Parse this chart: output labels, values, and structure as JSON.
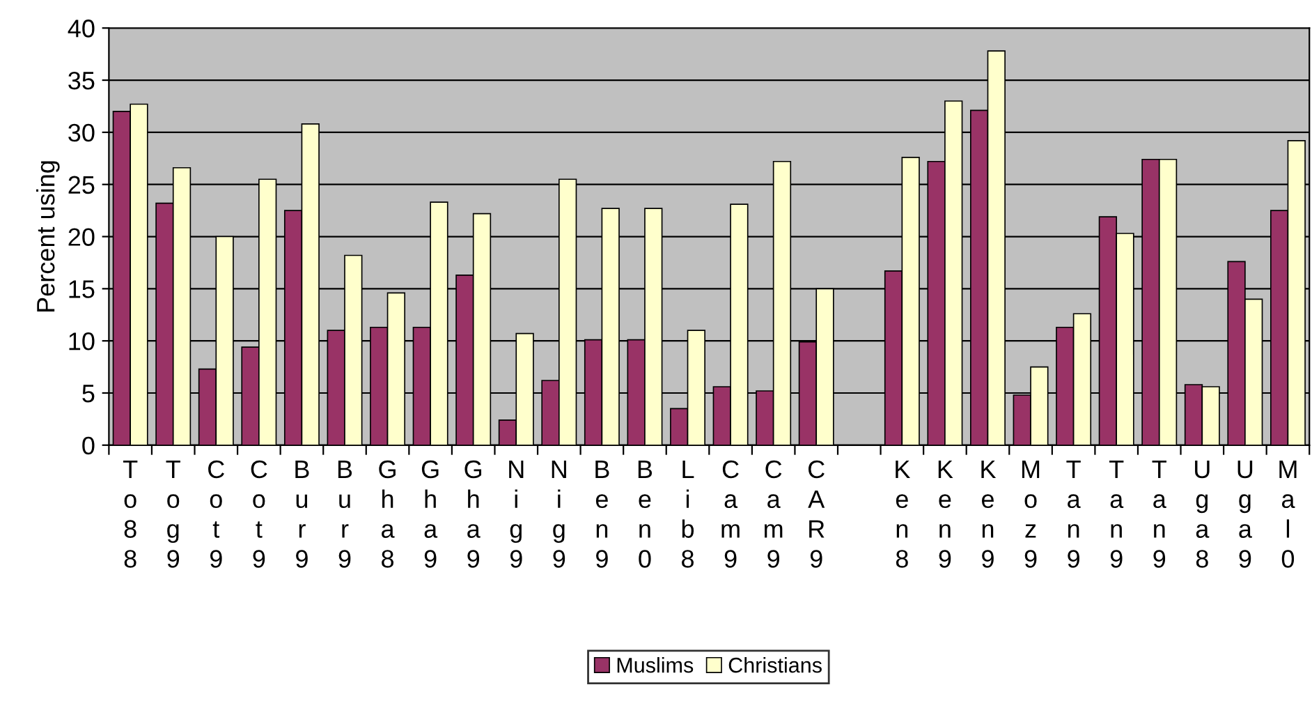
{
  "chart_data": {
    "type": "bar",
    "ylabel": "Percent using",
    "categories": [
      "To88",
      "Tog9",
      "Cot9",
      "Cot9",
      "Bur9",
      "Bur9",
      "Gha8",
      "Gha9",
      "Gha9",
      "Nig9",
      "Nig9",
      "Ben9",
      "Ben0",
      "Lib8",
      "Cam9",
      "Cam9",
      "CAR9",
      null,
      "Ken8",
      "Ken9",
      "Ken9",
      "Moz9",
      "Tan9",
      "Tan9",
      "Tan9",
      "Uga8",
      "Uga9",
      "Mal0"
    ],
    "series": [
      {
        "name": "Muslims",
        "color": "#993366",
        "values": [
          32,
          23.2,
          7.3,
          9.4,
          22.5,
          11,
          11.3,
          11.3,
          16.3,
          2.4,
          6.2,
          10.1,
          10.1,
          3.5,
          5.6,
          5.2,
          9.9,
          null,
          16.7,
          27.2,
          32.1,
          4.8,
          11.3,
          21.9,
          27.4,
          5.8,
          17.6,
          22.5
        ]
      },
      {
        "name": "Christians",
        "color": "#ffffcc",
        "values": [
          32.7,
          26.6,
          20,
          25.5,
          30.8,
          18.2,
          14.6,
          23.3,
          22.2,
          10.7,
          25.5,
          22.7,
          22.7,
          11,
          23.1,
          27.2,
          15,
          null,
          27.6,
          33,
          37.8,
          7.5,
          12.6,
          20.3,
          27.4,
          5.6,
          14,
          29.2
        ]
      }
    ],
    "ylim": [
      0,
      40
    ],
    "yticks": [
      0,
      5,
      10,
      15,
      20,
      25,
      30,
      35,
      40
    ],
    "grid": "y",
    "legend": "bottom"
  }
}
